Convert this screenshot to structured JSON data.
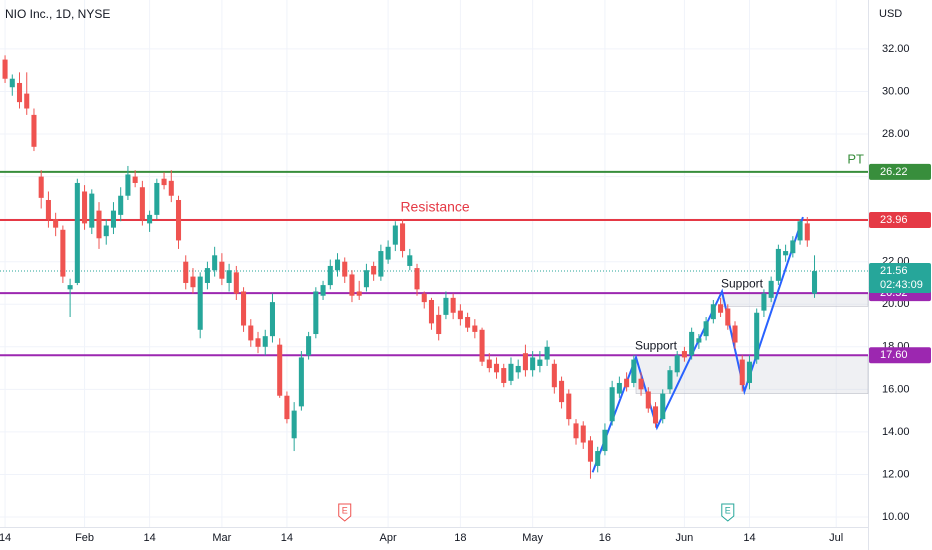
{
  "chart_data": {
    "type": "candlestick",
    "title": "NIO Inc., 1D, NYSE",
    "y_axis_label": "USD",
    "up_color": "#26a69a",
    "down_color": "#ef5350",
    "xlim": [
      -0.7,
      119.4
    ],
    "ylim": [
      9.53,
      34.3
    ],
    "xticks": [
      {
        "value": 0,
        "label": "14"
      },
      {
        "value": 11,
        "label": "Feb"
      },
      {
        "value": 20,
        "label": "14"
      },
      {
        "value": 30,
        "label": "Mar"
      },
      {
        "value": 39,
        "label": "14"
      },
      {
        "value": 53,
        "label": "Apr"
      },
      {
        "value": 63,
        "label": "18"
      },
      {
        "value": 73,
        "label": "May"
      },
      {
        "value": 83,
        "label": "16"
      },
      {
        "value": 94,
        "label": "Jun"
      },
      {
        "value": 103,
        "label": "14"
      },
      {
        "value": 115,
        "label": "Jul"
      }
    ],
    "yticks": [
      {
        "value": 10,
        "label": "10.00"
      },
      {
        "value": 12,
        "label": "12.00"
      },
      {
        "value": 14,
        "label": "14.00"
      },
      {
        "value": 16,
        "label": "16.00"
      },
      {
        "value": 18,
        "label": "18.00"
      },
      {
        "value": 20,
        "label": "20.00"
      },
      {
        "value": 22,
        "label": "22.00"
      },
      {
        "value": 24,
        "label": "24.00"
      },
      {
        "value": 26,
        "label": "26.00"
      },
      {
        "value": 28,
        "label": "28.00"
      },
      {
        "value": 30,
        "label": "30.00"
      },
      {
        "value": 32,
        "label": "32.00"
      }
    ],
    "open": [
      31.5,
      30.2,
      30.4,
      29.9,
      28.9,
      26.0,
      24.9,
      24.0,
      23.5,
      20.7,
      21.0,
      25.3,
      23.6,
      24.4,
      23.2,
      23.6,
      24.2,
      25.1,
      26.0,
      25.5,
      23.8,
      24.2,
      25.9,
      25.8,
      24.9,
      22.0,
      21.3,
      18.8,
      21.0,
      21.6,
      22.0,
      21.0,
      21.5,
      20.6,
      19.0,
      18.4,
      18.0,
      18.5,
      18.1,
      15.7,
      13.7,
      15.2,
      17.6,
      18.6,
      20.4,
      20.9,
      21.6,
      22.0,
      21.4,
      20.6,
      20.8,
      21.8,
      21.3,
      22.1,
      22.8,
      23.8,
      21.8,
      21.7,
      20.5,
      20.2,
      19.5,
      19.5,
      20.3,
      19.7,
      19.4,
      19.0,
      18.8,
      17.4,
      17.2,
      17.0,
      16.4,
      16.8,
      17.7,
      16.9,
      17.1,
      17.4,
      17.2,
      16.4,
      15.8,
      14.4,
      14.3,
      13.6,
      12.4,
      13.1,
      14.5,
      15.8,
      16.5,
      16.3,
      16.5,
      15.9,
      15.2,
      14.6,
      16.0,
      16.8,
      17.8,
      17.6,
      18.2,
      18.5,
      19.3,
      20.0,
      19.8,
      19.0,
      17.4,
      16.3,
      17.4,
      19.7,
      20.3,
      21.1,
      22.3,
      22.4,
      23.0,
      23.8,
      20.5
    ],
    "high": [
      31.7,
      30.8,
      30.9,
      30.9,
      29.2,
      26.3,
      25.3,
      24.3,
      23.7,
      21.2,
      25.9,
      25.6,
      25.4,
      24.8,
      24.0,
      24.8,
      25.5,
      26.5,
      26.3,
      25.8,
      24.4,
      25.9,
      26.2,
      26.3,
      25.1,
      22.3,
      21.7,
      21.5,
      22.0,
      22.7,
      22.4,
      21.9,
      21.8,
      20.8,
      19.3,
      18.7,
      18.8,
      20.5,
      18.4,
      15.9,
      15.4,
      17.8,
      18.7,
      20.8,
      21.1,
      22.1,
      22.4,
      22.2,
      21.6,
      21.1,
      21.9,
      22.0,
      22.8,
      23.0,
      23.9,
      24.0,
      22.6,
      21.9,
      20.6,
      20.3,
      19.9,
      20.6,
      20.5,
      20.0,
      19.6,
      19.3,
      18.9,
      17.7,
      17.5,
      17.2,
      17.5,
      17.4,
      18.1,
      17.8,
      17.8,
      18.3,
      17.4,
      16.6,
      16.0,
      14.6,
      14.5,
      13.8,
      13.3,
      14.4,
      16.4,
      16.6,
      16.8,
      17.6,
      16.8,
      16.1,
      15.4,
      16.0,
      17.1,
      17.8,
      18.0,
      18.9,
      18.6,
      19.4,
      20.2,
      20.3,
      20.0,
      19.2,
      17.6,
      17.6,
      19.8,
      20.7,
      21.3,
      22.8,
      22.8,
      23.2,
      24.0,
      24.1,
      22.3
    ],
    "low": [
      30.4,
      29.8,
      29.2,
      28.9,
      27.2,
      24.5,
      23.6,
      23.2,
      21.0,
      19.4,
      20.9,
      23.5,
      23.3,
      22.6,
      22.8,
      23.3,
      23.9,
      24.9,
      25.5,
      23.7,
      23.4,
      24.0,
      25.4,
      24.8,
      22.6,
      20.7,
      20.5,
      18.4,
      20.7,
      21.3,
      20.9,
      20.6,
      20.2,
      18.7,
      18.0,
      17.7,
      17.6,
      18.2,
      15.6,
      14.4,
      13.1,
      15.0,
      17.4,
      18.4,
      20.2,
      20.7,
      21.3,
      21.0,
      20.1,
      20.2,
      20.6,
      21.1,
      21.1,
      21.9,
      22.5,
      22.2,
      21.6,
      20.4,
      19.8,
      18.8,
      18.3,
      19.3,
      19.3,
      19.0,
      18.7,
      18.4,
      17.1,
      16.8,
      16.5,
      16.1,
      16.2,
      16.5,
      16.6,
      16.6,
      16.8,
      17.1,
      15.8,
      15.1,
      14.3,
      13.4,
      13.2,
      11.8,
      12.1,
      12.9,
      14.3,
      15.6,
      15.9,
      16.1,
      15.7,
      14.9,
      14.2,
      14.4,
      15.8,
      16.6,
      17.3,
      17.4,
      17.9,
      18.3,
      19.1,
      19.4,
      18.8,
      17.9,
      15.9,
      16.0,
      17.2,
      19.4,
      20.1,
      20.9,
      22.0,
      22.2,
      22.8,
      22.7,
      20.3
    ],
    "close": [
      30.6,
      30.6,
      29.5,
      29.2,
      27.4,
      25.0,
      24.0,
      23.6,
      21.3,
      20.9,
      25.7,
      23.8,
      25.2,
      23.1,
      23.7,
      24.4,
      25.1,
      26.1,
      25.7,
      24.0,
      24.2,
      25.7,
      25.6,
      25.1,
      23.0,
      21.0,
      20.8,
      21.3,
      21.7,
      22.3,
      21.2,
      21.6,
      20.5,
      19.0,
      18.3,
      18.0,
      18.5,
      20.1,
      15.7,
      14.6,
      15.0,
      17.5,
      18.5,
      20.6,
      20.9,
      21.8,
      22.1,
      21.3,
      20.4,
      20.4,
      21.6,
      21.4,
      22.5,
      22.7,
      23.7,
      22.5,
      22.3,
      20.7,
      20.1,
      19.1,
      18.6,
      20.3,
      19.6,
      19.3,
      18.9,
      18.7,
      17.3,
      17.0,
      16.8,
      16.3,
      17.2,
      17.1,
      16.9,
      17.5,
      17.4,
      18.0,
      16.1,
      15.4,
      14.6,
      13.7,
      13.5,
      12.6,
      13.1,
      14.1,
      16.1,
      16.3,
      16.1,
      17.4,
      16.0,
      15.1,
      14.4,
      15.8,
      16.9,
      17.6,
      17.5,
      18.7,
      18.4,
      19.2,
      20.0,
      19.6,
      19.0,
      18.2,
      16.2,
      17.3,
      19.6,
      20.5,
      21.1,
      22.6,
      22.5,
      23.0,
      23.9,
      23.0,
      21.56
    ],
    "last_price": {
      "value": 21.56,
      "countdown": "02:43:09",
      "color": "#26a69a"
    },
    "levels": [
      {
        "value": 26.22,
        "color": "#388e3c",
        "text": "PT"
      },
      {
        "value": 23.96,
        "color": "#e53945",
        "text": "Resistance"
      },
      {
        "value": 20.52,
        "color": "#9c27b0"
      },
      {
        "value": 17.6,
        "value_label": "17.60",
        "color": "#9c27b0"
      }
    ],
    "zones": [
      {
        "top": 20.52,
        "bottom": 19.9,
        "start": 99.2,
        "text": "Support",
        "color": "#9c27b0"
      },
      {
        "top": 17.6,
        "bottom": 15.8,
        "start": 87.3,
        "text": "Support",
        "color": "#9c27b0"
      }
    ],
    "trendline": {
      "color": "#2962ff",
      "x": [
        81.3,
        87.3,
        90.2,
        99.2,
        102.3,
        110.4
      ],
      "y": [
        12.1,
        17.5,
        14.2,
        20.6,
        15.9,
        24.1
      ]
    },
    "events": [
      {
        "text": "E",
        "x": 47,
        "color": "#ef5350"
      },
      {
        "text": "E",
        "x": 100,
        "color": "#26a69a"
      }
    ]
  }
}
